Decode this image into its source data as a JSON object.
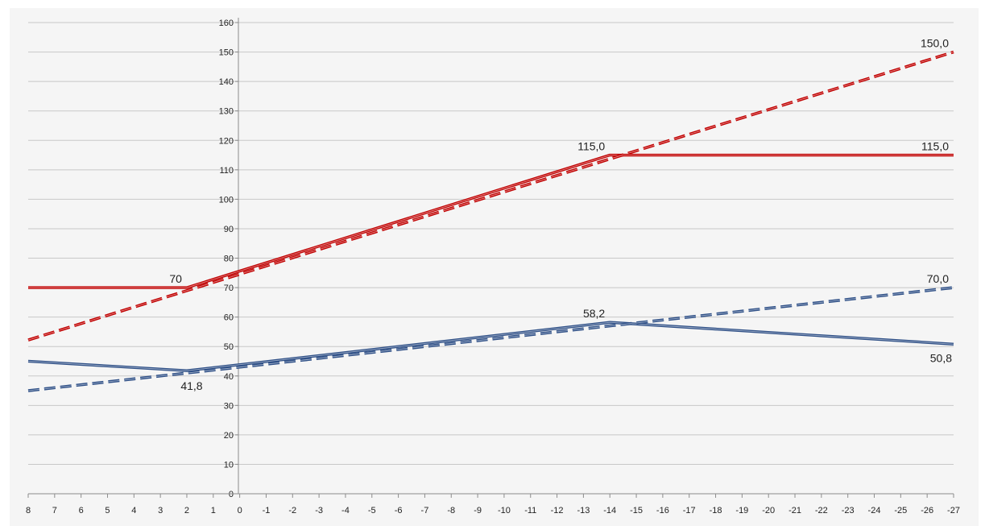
{
  "chart_data": {
    "type": "line",
    "title": "",
    "xlabel": "",
    "ylabel": "",
    "x": [
      8,
      7,
      6,
      5,
      4,
      3,
      2,
      1,
      0,
      -1,
      -2,
      -3,
      -4,
      -5,
      -6,
      -7,
      -8,
      -9,
      -10,
      -11,
      -12,
      -13,
      -14,
      -15,
      -16,
      -17,
      -18,
      -19,
      -20,
      -21,
      -22,
      -23,
      -24,
      -25,
      -26,
      -27
    ],
    "x_tick_labels": [
      "8",
      "7",
      "6",
      "5",
      "4",
      "3",
      "2",
      "1",
      "0",
      "-1",
      "-2",
      "-3",
      "-4",
      "-5",
      "-6",
      "-7",
      "-8",
      "-9",
      "-10",
      "-11",
      "-12",
      "-13",
      "-14",
      "-15",
      "-16",
      "-17",
      "-18",
      "-19",
      "-20",
      "-21",
      "-22",
      "-23",
      "-24",
      "-25",
      "-26",
      "-27"
    ],
    "xlim": [
      8,
      -27
    ],
    "ylim": [
      0,
      160
    ],
    "y_ticks": [
      0,
      10,
      20,
      30,
      40,
      50,
      60,
      70,
      80,
      90,
      100,
      110,
      120,
      130,
      140,
      150,
      160
    ],
    "y_tick_labels": [
      "0",
      "10",
      "20",
      "30",
      "40",
      "50",
      "60",
      "70",
      "80",
      "90",
      "100",
      "110",
      "120",
      "130",
      "140",
      "150",
      "160"
    ],
    "grid": true,
    "legend": "none",
    "series": [
      {
        "style": "solid",
        "color": "#c00000",
        "points": [
          [
            8,
            70
          ],
          [
            2,
            70
          ],
          [
            -14,
            115
          ],
          [
            -27,
            115
          ]
        ]
      },
      {
        "style": "dashed",
        "color": "#c00000",
        "points": [
          [
            8,
            52.2
          ],
          [
            -27,
            150
          ]
        ]
      },
      {
        "style": "solid",
        "color": "#2e4f86",
        "points": [
          [
            8,
            45
          ],
          [
            2,
            41.8
          ],
          [
            -14,
            58.2
          ],
          [
            -27,
            50.8
          ]
        ]
      },
      {
        "style": "dashed",
        "color": "#2e4f86",
        "points": [
          [
            8,
            35
          ],
          [
            -27,
            70
          ]
        ]
      }
    ],
    "data_labels": [
      {
        "x": 2,
        "y": 70,
        "text": "70",
        "anchor": "above-left"
      },
      {
        "x": -14,
        "y": 115,
        "text": "115,0",
        "anchor": "above-left"
      },
      {
        "x": -27,
        "y": 115,
        "text": "115,0",
        "anchor": "above-left"
      },
      {
        "x": -27,
        "y": 150,
        "text": "150,0",
        "anchor": "above-left"
      },
      {
        "x": -27,
        "y": 70,
        "text": "70,0",
        "anchor": "above-left"
      },
      {
        "x": -14,
        "y": 58.2,
        "text": "58,2",
        "anchor": "above-left"
      },
      {
        "x": -27,
        "y": 50.8,
        "text": "50,8",
        "anchor": "below-left"
      },
      {
        "x": 2,
        "y": 41.8,
        "text": "41,8",
        "anchor": "below"
      }
    ],
    "colors": {
      "plot_background": "#f5f5f5",
      "gridline": "#c8c8c8",
      "axis": "#8c8c8c"
    }
  }
}
